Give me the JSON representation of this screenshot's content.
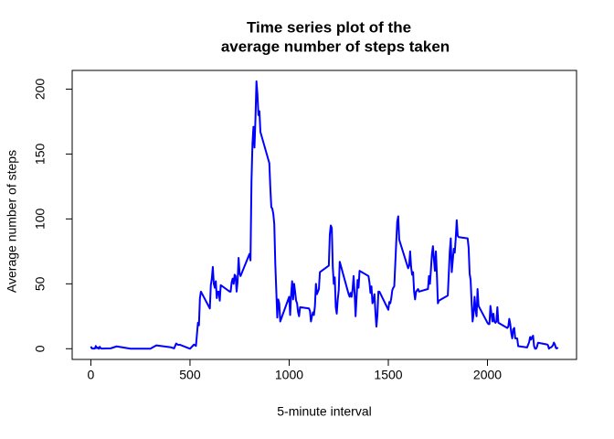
{
  "chart_data": {
    "type": "line",
    "title": [
      "Time series plot of the",
      "average number of steps taken"
    ],
    "x_label": "5-minute interval",
    "y_label": "Average number of steps",
    "x": [
      0,
      5,
      10,
      15,
      20,
      25,
      30,
      35,
      40,
      45,
      50,
      55,
      100,
      130,
      200,
      300,
      330,
      400,
      420,
      430,
      440,
      450,
      500,
      520,
      530,
      540,
      545,
      550,
      555,
      600,
      605,
      610,
      615,
      620,
      625,
      630,
      635,
      640,
      645,
      650,
      655,
      700,
      705,
      710,
      715,
      720,
      725,
      730,
      735,
      740,
      745,
      750,
      755,
      800,
      805,
      810,
      815,
      820,
      825,
      830,
      835,
      840,
      845,
      850,
      855,
      900,
      905,
      910,
      915,
      920,
      925,
      930,
      935,
      940,
      945,
      950,
      955,
      1000,
      1005,
      1010,
      1015,
      1020,
      1025,
      1030,
      1035,
      1040,
      1045,
      1050,
      1055,
      1100,
      1105,
      1110,
      1115,
      1120,
      1125,
      1130,
      1135,
      1140,
      1145,
      1150,
      1155,
      1200,
      1205,
      1210,
      1215,
      1220,
      1225,
      1230,
      1235,
      1240,
      1245,
      1250,
      1255,
      1300,
      1305,
      1310,
      1315,
      1320,
      1325,
      1330,
      1335,
      1340,
      1345,
      1350,
      1355,
      1400,
      1405,
      1410,
      1415,
      1420,
      1425,
      1430,
      1435,
      1440,
      1445,
      1450,
      1455,
      1500,
      1505,
      1510,
      1515,
      1520,
      1525,
      1530,
      1535,
      1540,
      1545,
      1550,
      1555,
      1600,
      1605,
      1610,
      1615,
      1620,
      1625,
      1630,
      1635,
      1640,
      1645,
      1650,
      1655,
      1700,
      1705,
      1710,
      1715,
      1720,
      1725,
      1730,
      1735,
      1740,
      1745,
      1750,
      1755,
      1800,
      1805,
      1810,
      1815,
      1820,
      1825,
      1830,
      1835,
      1840,
      1845,
      1850,
      1855,
      1900,
      1905,
      1910,
      1915,
      1920,
      1925,
      1930,
      1935,
      1940,
      1945,
      1950,
      1955,
      2000,
      2005,
      2010,
      2015,
      2020,
      2025,
      2030,
      2035,
      2040,
      2045,
      2050,
      2055,
      2100,
      2105,
      2110,
      2115,
      2120,
      2125,
      2130,
      2135,
      2140,
      2145,
      2150,
      2155,
      2200,
      2205,
      2210,
      2215,
      2220,
      2225,
      2230,
      2235,
      2240,
      2245,
      2250,
      2255,
      2300,
      2305,
      2310,
      2315,
      2320,
      2325,
      2330,
      2335,
      2340,
      2345,
      2350,
      2355
    ],
    "series": [
      {
        "color": "#0000ff",
        "values": [
          1.7,
          0.3,
          0.1,
          0.2,
          0.1,
          2.1,
          0.5,
          0.9,
          0,
          1.5,
          0.3,
          0.1,
          0.3,
          1.8,
          0,
          0,
          2.6,
          1.2,
          0.3,
          4,
          3,
          3,
          0,
          3.2,
          2.2,
          20,
          18,
          39,
          44,
          31,
          49,
          54,
          63,
          50,
          47,
          52,
          39,
          44,
          44,
          37,
          49,
          44,
          44,
          51,
          54,
          50,
          57,
          56,
          44,
          52,
          70,
          58,
          56,
          73,
          68,
          129,
          158,
          171,
          155,
          177,
          206,
          196,
          180,
          183,
          167,
          143,
          124,
          109,
          108,
          104,
          96,
          66,
          45,
          24,
          38,
          35,
          21,
          40,
          26,
          42,
          52,
          38,
          50,
          44,
          37,
          35,
          28,
          25,
          32,
          31,
          29,
          21,
          25,
          28,
          26,
          33,
          50,
          42,
          44,
          46,
          59,
          64,
          88,
          95,
          93,
          63,
          50,
          55,
          32,
          27,
          38,
          45,
          67,
          42,
          40,
          43,
          40,
          46,
          56,
          43,
          25,
          40,
          53,
          47,
          60,
          56,
          51,
          43,
          48,
          35,
          37,
          42,
          28,
          17,
          26,
          44,
          44,
          30,
          36,
          35,
          39,
          45,
          47,
          48,
          65,
          82,
          98,
          102,
          84,
          62,
          64,
          75,
          63,
          57,
          59,
          44,
          38,
          44,
          45,
          46,
          44,
          46,
          56,
          50,
          61,
          73,
          79,
          69,
          60,
          75,
          57,
          35,
          37,
          41,
          58,
          75,
          85,
          59,
          68,
          77,
          74,
          85,
          99,
          87,
          86,
          85,
          78,
          58,
          53,
          36,
          21,
          27,
          40,
          30,
          25,
          46,
          33,
          20,
          19,
          19,
          33,
          27,
          21,
          27,
          21,
          20,
          21,
          32,
          20,
          16,
          17,
          23,
          19,
          12,
          8,
          15,
          16,
          8,
          8,
          8,
          2,
          1,
          3,
          5,
          9,
          7,
          9,
          10,
          2,
          0,
          0,
          1.6,
          4.6,
          3.3,
          2.8,
          0,
          0.8,
          1,
          1.6,
          2.6,
          4.7,
          3.3,
          0.6,
          0.2,
          1.1
        ]
      }
    ],
    "xlim": [
      -94.2,
      2449.2
    ],
    "ylim": [
      -8.25,
      214.4
    ],
    "xticks": [
      0,
      500,
      1000,
      1500,
      2000
    ],
    "yticks": [
      0,
      50,
      100,
      150,
      200
    ]
  }
}
